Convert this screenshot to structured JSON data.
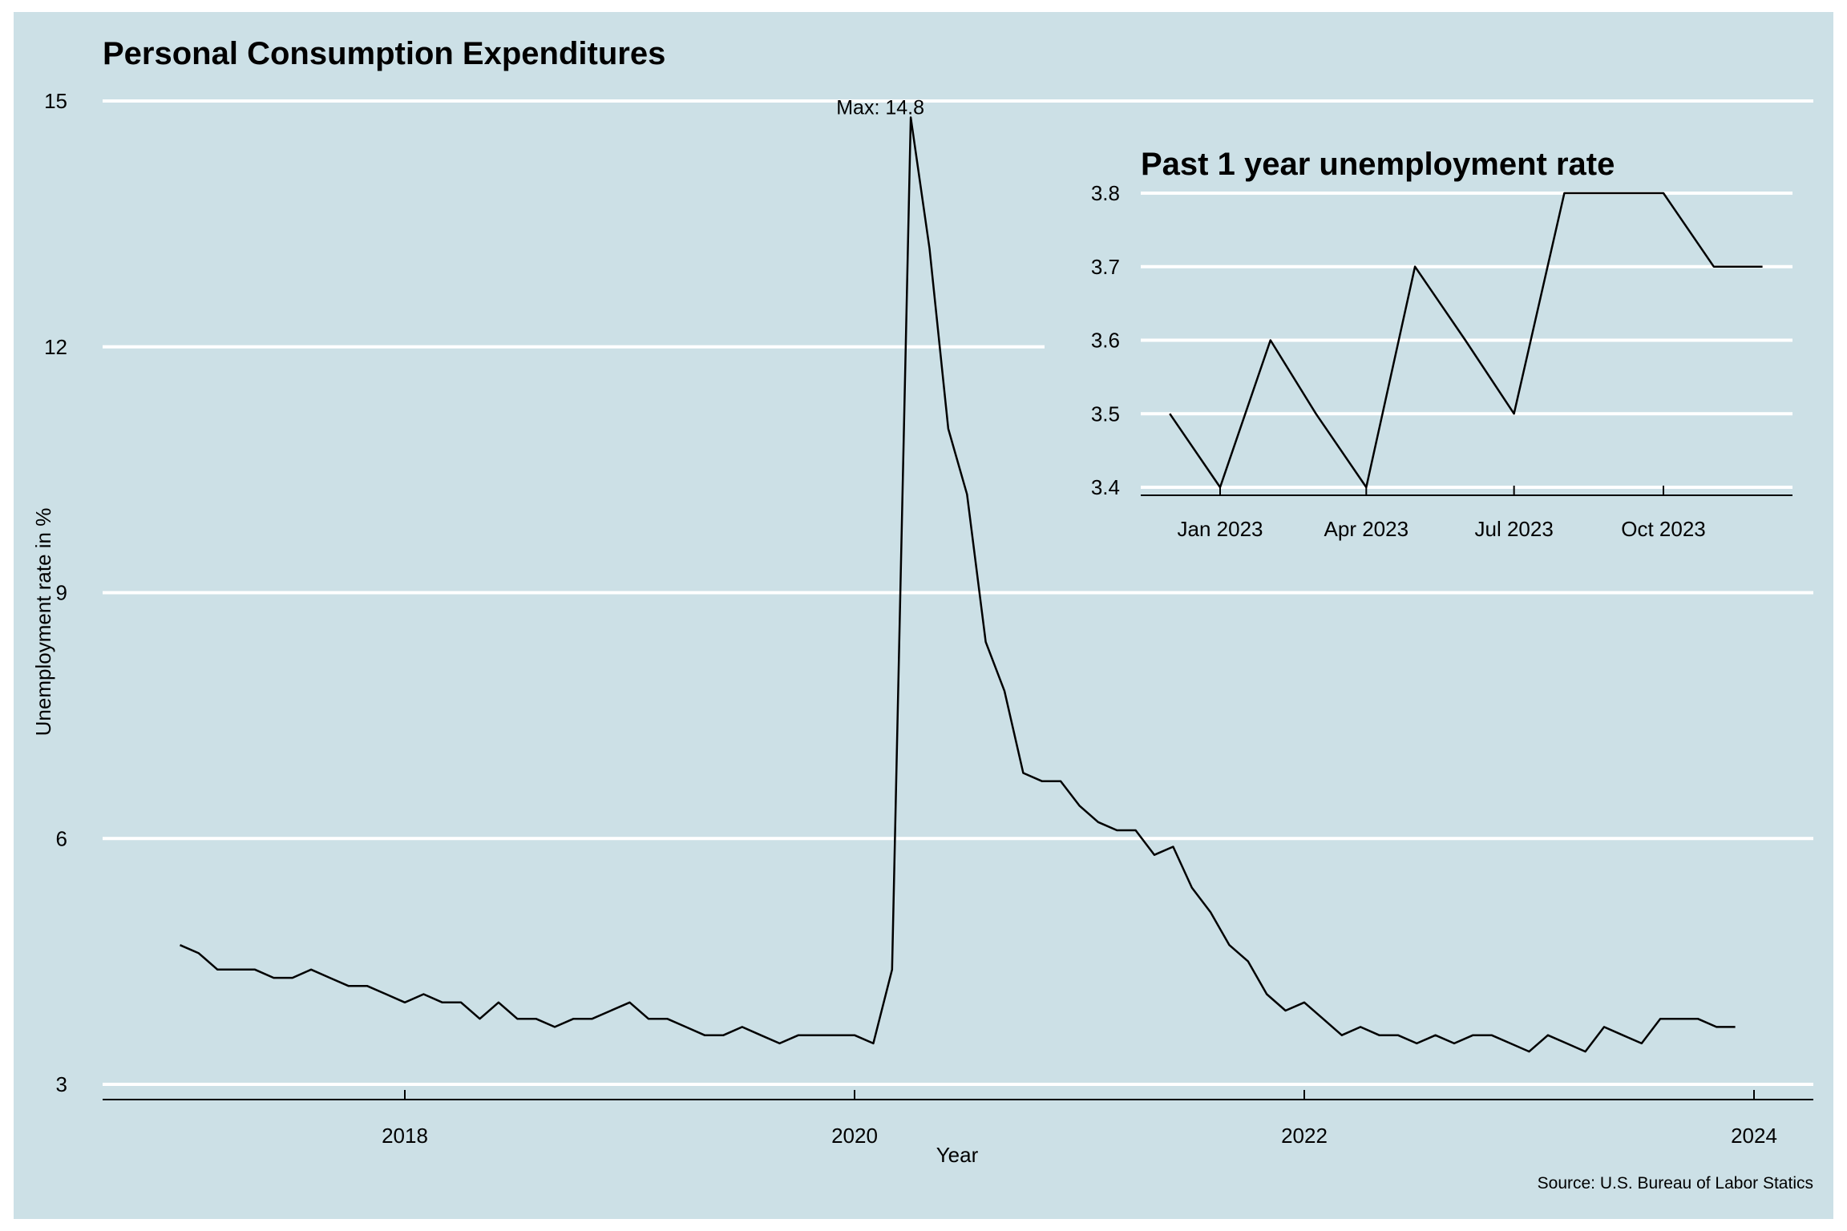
{
  "colors": {
    "background": "#cce0e6",
    "grid": "#ffffff",
    "line": "#000000",
    "page": "#ffffff"
  },
  "chart_data": [
    {
      "type": "line",
      "title": "Personal Consumption Expenditures",
      "xlabel": "Year",
      "ylabel": "Unemployment rate in %",
      "caption": "Source: U.S. Bureau of Labor Statics",
      "annotation": {
        "text": "Max:  14.8",
        "x": "2020-04",
        "y": 14.8
      },
      "ylim": [
        2.8,
        15.2
      ],
      "y_ticks": [
        3,
        6,
        9,
        12,
        15
      ],
      "x_ticks": [
        "2018",
        "2020",
        "2022",
        "2024"
      ],
      "grid": "horizontal",
      "series": [
        {
          "x": [
            "2017-01",
            "2017-02",
            "2017-03",
            "2017-04",
            "2017-05",
            "2017-06",
            "2017-07",
            "2017-08",
            "2017-09",
            "2017-10",
            "2017-11",
            "2017-12",
            "2018-01",
            "2018-02",
            "2018-03",
            "2018-04",
            "2018-05",
            "2018-06",
            "2018-07",
            "2018-08",
            "2018-09",
            "2018-10",
            "2018-11",
            "2018-12",
            "2019-01",
            "2019-02",
            "2019-03",
            "2019-04",
            "2019-05",
            "2019-06",
            "2019-07",
            "2019-08",
            "2019-09",
            "2019-10",
            "2019-11",
            "2019-12",
            "2020-01",
            "2020-02",
            "2020-03",
            "2020-04",
            "2020-05",
            "2020-06",
            "2020-07",
            "2020-08",
            "2020-09",
            "2020-10",
            "2020-11",
            "2020-12",
            "2021-01",
            "2021-02",
            "2021-03",
            "2021-04",
            "2021-05",
            "2021-06",
            "2021-07",
            "2021-08",
            "2021-09",
            "2021-10",
            "2021-11",
            "2021-12",
            "2022-01",
            "2022-02",
            "2022-03",
            "2022-04",
            "2022-05",
            "2022-06",
            "2022-07",
            "2022-08",
            "2022-09",
            "2022-10",
            "2022-11",
            "2022-12",
            "2023-01",
            "2023-02",
            "2023-03",
            "2023-04",
            "2023-05",
            "2023-06",
            "2023-07",
            "2023-08",
            "2023-09",
            "2023-10",
            "2023-11",
            "2023-12"
          ],
          "values": [
            4.7,
            4.6,
            4.4,
            4.4,
            4.4,
            4.3,
            4.3,
            4.4,
            4.3,
            4.2,
            4.2,
            4.1,
            4.0,
            4.1,
            4.0,
            4.0,
            3.8,
            4.0,
            3.8,
            3.8,
            3.7,
            3.8,
            3.8,
            3.9,
            4.0,
            3.8,
            3.8,
            3.7,
            3.6,
            3.6,
            3.7,
            3.6,
            3.5,
            3.6,
            3.6,
            3.6,
            3.6,
            3.5,
            4.4,
            14.8,
            13.2,
            11.0,
            10.2,
            8.4,
            7.8,
            6.8,
            6.7,
            6.7,
            6.4,
            6.2,
            6.1,
            6.1,
            5.8,
            5.9,
            5.4,
            5.1,
            4.7,
            4.5,
            4.1,
            3.9,
            4.0,
            3.8,
            3.6,
            3.7,
            3.6,
            3.6,
            3.5,
            3.6,
            3.5,
            3.6,
            3.6,
            3.5,
            3.4,
            3.6,
            3.5,
            3.4,
            3.7,
            3.6,
            3.5,
            3.8,
            3.8,
            3.8,
            3.7,
            3.7
          ]
        }
      ]
    },
    {
      "type": "line",
      "title": "Past 1 year unemployment rate",
      "ylim": [
        3.38,
        3.82
      ],
      "y_ticks": [
        3.4,
        3.5,
        3.6,
        3.7,
        3.8
      ],
      "x_ticks": [
        "Jan 2023",
        "Apr 2023",
        "Jul 2023",
        "Oct 2023"
      ],
      "x_tick_dates": [
        "2023-01-01",
        "2023-04-01",
        "2023-07-01",
        "2023-10-01"
      ],
      "grid": "horizontal",
      "series": [
        {
          "x": [
            "2022-12-01",
            "2023-01-01",
            "2023-02-01",
            "2023-03-01",
            "2023-04-01",
            "2023-05-01",
            "2023-06-01",
            "2023-07-01",
            "2023-08-01",
            "2023-09-01",
            "2023-10-01",
            "2023-11-01",
            "2023-12-01"
          ],
          "values": [
            3.5,
            3.4,
            3.6,
            3.5,
            3.4,
            3.7,
            3.6,
            3.5,
            3.8,
            3.8,
            3.8,
            3.7,
            3.7
          ]
        }
      ]
    }
  ]
}
